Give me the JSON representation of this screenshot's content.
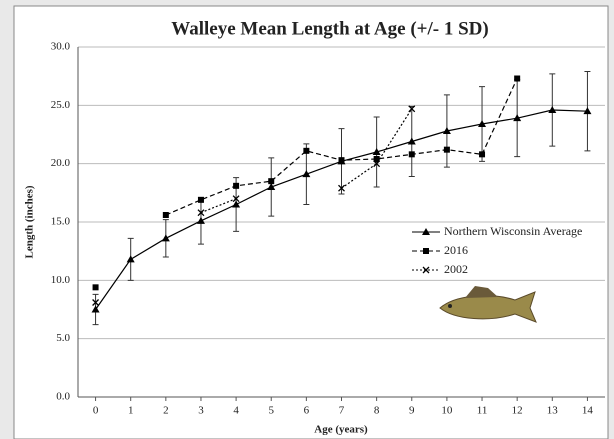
{
  "chart_data": {
    "type": "line",
    "title": "Walleye Mean Length at Age (+/- 1 SD)",
    "x_label": "Age (years)",
    "y_label": "Length (inches)",
    "x": [
      0,
      1,
      2,
      3,
      4,
      5,
      6,
      7,
      8,
      9,
      10,
      11,
      12,
      13,
      14
    ],
    "series": [
      {
        "name": "Northern Wisconsin Average",
        "color": "#000000",
        "marker": "triangle",
        "dash": "solid",
        "values": [
          7.5,
          11.8,
          13.6,
          15.1,
          16.5,
          18.0,
          19.1,
          20.2,
          21.0,
          21.9,
          22.8,
          23.4,
          23.9,
          24.6,
          24.5
        ],
        "errors": [
          1.3,
          1.8,
          1.6,
          2.0,
          2.3,
          2.5,
          2.6,
          2.8,
          3.0,
          3.0,
          3.1,
          3.2,
          3.3,
          3.1,
          3.4
        ]
      },
      {
        "name": "2016",
        "color": "#000000",
        "marker": "square",
        "dash": "dashed",
        "values": [
          9.4,
          null,
          15.6,
          16.9,
          18.1,
          18.5,
          21.1,
          20.3,
          20.4,
          20.8,
          21.2,
          20.8,
          27.3,
          null,
          null
        ]
      },
      {
        "name": "2002",
        "color": "#000000",
        "marker": "x",
        "dash": "dotted",
        "values": [
          8.1,
          null,
          null,
          15.8,
          17.0,
          null,
          null,
          17.9,
          20.0,
          24.7,
          null,
          null,
          null,
          null,
          null
        ]
      }
    ],
    "xlim": [
      -0.5,
      14.5
    ],
    "xticks": [
      0,
      1,
      2,
      3,
      4,
      5,
      6,
      7,
      8,
      9,
      10,
      11,
      12,
      13,
      14
    ],
    "ylim": [
      0,
      30
    ],
    "yticks": [
      {
        "value": 0,
        "label": "0.0"
      },
      {
        "value": 5,
        "label": "5.0"
      },
      {
        "value": 10,
        "label": "10.0"
      },
      {
        "value": 15,
        "label": "15.0"
      },
      {
        "value": 20,
        "label": "20.0"
      },
      {
        "value": 25,
        "label": "25.0"
      },
      {
        "value": 30,
        "label": "30.0"
      }
    ],
    "grid": true,
    "legend": "right"
  }
}
